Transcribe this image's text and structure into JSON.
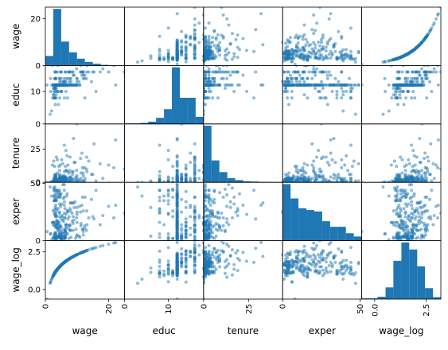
{
  "chart_data": {
    "type": "scatter",
    "subtype": "scatter-matrix",
    "variables": [
      "wage",
      "educ",
      "tenure",
      "exper",
      "wage_log"
    ],
    "point_color": "#1f77b4",
    "point_alpha": 0.5,
    "diagonal": "hist",
    "ranges": {
      "wage": [
        0,
        25
      ],
      "educ": [
        0,
        18
      ],
      "tenure": [
        0,
        44
      ],
      "exper": [
        0,
        51
      ],
      "wage_log": [
        -0.63,
        3.22
      ]
    },
    "ticks": {
      "wage": [
        {
          "v": 0,
          "label": "0"
        },
        {
          "v": 20,
          "label": "20"
        }
      ],
      "educ": [
        {
          "v": 0,
          "label": "0"
        },
        {
          "v": 10,
          "label": "10"
        }
      ],
      "tenure": [
        {
          "v": 0,
          "label": "0"
        },
        {
          "v": 25,
          "label": "25"
        }
      ],
      "exper": [
        {
          "v": 0,
          "label": "0"
        },
        {
          "v": 50,
          "label": "50"
        }
      ],
      "wage_log": [
        {
          "v": 0,
          "label": "0.0"
        },
        {
          "v": 2.5,
          "label": "2.5"
        }
      ]
    },
    "hist": {
      "wage": {
        "edges": [
          0,
          2.5,
          5,
          7.5,
          10,
          12.5,
          15,
          17.5,
          20,
          22.5,
          25
        ],
        "counts": [
          42,
          248,
          105,
          58,
          30,
          16,
          8,
          3,
          2,
          1
        ]
      },
      "educ": {
        "edges": [
          0,
          1.8,
          3.6,
          5.4,
          7.2,
          9,
          10.8,
          12.6,
          14.4,
          16.2,
          18
        ],
        "counts": [
          2,
          2,
          4,
          9,
          24,
          58,
          223,
          103,
          103,
          28
        ]
      },
      "tenure": {
        "edges": [
          0,
          4.4,
          8.8,
          13.2,
          17.6,
          22,
          26.4,
          30.8,
          35.2,
          39.6,
          44
        ],
        "counts": [
          305,
          118,
          55,
          23,
          12,
          6,
          4,
          2,
          1,
          1
        ]
      },
      "exper": {
        "edges": [
          0,
          5.1,
          10.2,
          15.3,
          20.4,
          25.5,
          30.6,
          35.7,
          40.8,
          45.9,
          51
        ],
        "counts": [
          122,
          91,
          70,
          66,
          63,
          42,
          30,
          30,
          16,
          9
        ]
      },
      "wage_log": {
        "edges": [
          -0.63,
          -0.24,
          0.14,
          0.53,
          0.91,
          1.3,
          1.68,
          2.07,
          2.45,
          2.84,
          3.22
        ],
        "counts": [
          2,
          2,
          6,
          30,
          98,
          145,
          127,
          84,
          28,
          5
        ]
      }
    },
    "samples": {
      "wage": [
        3.1,
        3.24,
        3.0,
        6.0,
        5.3,
        8.75,
        11.25,
        5.0,
        3.6,
        18.18,
        6.25,
        8.13,
        8.77,
        5.5,
        22.2,
        17.33,
        7.5,
        10.63,
        3.6,
        4.5,
        6.88,
        8.48,
        6.33,
        0.53,
        6.0,
        9.56,
        7.78,
        12.5,
        12.5,
        3.25,
        13.0,
        4.5,
        9.68,
        5.0,
        4.68,
        4.27,
        6.15,
        3.51,
        3.0,
        6.25,
        7.81,
        10.0,
        4.5,
        4.0,
        6.38,
        13.7,
        1.67,
        2.93,
        3.65,
        2.9,
        1.63,
        8.6,
        5.0,
        6.0,
        2.5,
        3.25,
        3.4,
        10.0,
        21.63,
        4.38,
        11.71,
        12.39,
        6.25,
        3.71,
        7.78,
        19.98,
        6.25,
        10.0,
        5.71,
        2.0,
        5.71,
        13.08,
        4.91,
        2.91,
        3.75,
        11.9,
        4.0,
        3.1,
        8.45,
        7.14,
        4.5,
        4.65,
        2.9,
        6.67,
        3.5,
        3.26,
        3.25,
        8.0,
        9.85,
        7.5,
        5.91,
        11.76,
        3.0,
        4.81,
        6.5,
        4.0,
        3.5,
        13.16,
        2.9,
        3.0,
        4.5,
        3.55,
        4.6,
        6.25,
        8.8,
        2.75,
        11.25,
        4.45,
        3.0,
        7.5,
        5.75,
        7.0,
        9.12,
        3.7,
        2.92,
        4.5,
        15.0,
        4.95,
        6.25,
        3.0,
        2.75,
        9.38,
        7.69,
        5.0,
        4.75,
        4.0,
        3.22,
        11.56,
        5.33,
        2.0,
        4.65,
        12.0,
        6.67,
        5.21,
        2.83,
        3.87,
        4.55,
        5.0,
        3.0,
        6.5,
        7.15,
        4.8,
        8.0,
        2.5,
        4.5,
        1.5,
        3.87,
        6.25,
        15.38,
        3.35,
        5.75,
        3.5,
        2.92,
        6.33,
        7.5,
        2.51,
        4.33,
        3.0,
        5.88,
        4.5,
        11.1,
        3.75,
        2.75,
        4.0,
        4.0,
        5.0,
        6.4,
        4.13,
        9.99,
        3.0,
        12.0,
        3.5,
        24.98,
        6.0,
        3.35,
        2.3,
        10.0,
        3.35,
        5.0,
        4.5,
        4.5,
        6.8,
        3.5,
        9.86,
        3.8,
        3.0,
        2.8,
        4.0,
        5.5,
        5.33,
        6.0,
        3.6,
        16.0,
        4.0,
        6.25,
        8.0,
        3.0,
        5.15,
        4.82,
        2.5,
        6.5,
        3.25,
        7.0,
        10.9,
        3.25,
        2.25,
        4.13,
        6.28,
        5.0,
        6.0,
        2.8,
        10.8,
        4.0,
        3.8,
        3.5,
        12.0,
        5.38,
        4.5,
        6.0,
        3.0,
        3.5,
        3.33,
        5.65,
        6.75,
        5.2,
        8.9,
        3.35,
        2.5,
        5.0,
        3.5,
        9.0,
        3.0,
        14.58,
        8.0,
        4.85,
        2.65,
        5.0,
        3.25,
        2.9,
        4.45,
        7.0,
        6.0,
        4.0,
        4.7
      ],
      "educ": [
        11,
        12,
        11,
        8,
        12,
        16,
        18,
        12,
        12,
        17,
        16,
        13,
        12,
        12,
        12,
        16,
        12,
        13,
        12,
        12,
        12,
        16,
        12,
        12,
        12,
        12,
        16,
        15,
        8,
        14,
        14,
        12,
        12,
        16,
        12,
        12,
        12,
        12,
        12,
        12,
        14,
        12,
        13,
        12,
        12,
        16,
        10,
        8,
        10,
        11,
        14,
        12,
        12,
        12,
        12,
        12,
        9,
        12,
        18,
        12,
        16,
        14,
        12,
        12,
        12,
        16,
        12,
        14,
        13,
        12,
        12,
        16,
        13,
        12,
        12,
        16,
        10,
        6,
        12,
        14,
        12,
        12,
        8,
        14,
        12,
        16,
        12,
        12,
        17,
        12,
        13,
        16,
        14,
        12,
        12,
        12,
        12,
        18,
        11,
        12,
        14,
        12,
        12,
        12,
        15,
        8,
        16,
        14,
        12,
        16,
        13,
        12,
        15,
        12,
        10,
        12,
        16,
        12,
        13,
        8,
        10,
        12,
        16,
        10,
        16,
        12,
        11,
        15,
        12,
        4,
        12,
        16,
        12,
        12,
        12,
        12,
        8,
        12,
        12,
        12,
        16,
        12,
        14,
        11,
        12,
        3,
        12,
        12,
        16,
        12,
        12,
        12,
        12,
        16,
        13,
        9,
        12,
        12,
        12,
        12,
        16,
        12,
        9,
        12,
        12,
        12,
        13,
        12,
        13,
        12,
        15,
        8,
        16,
        12,
        14,
        8,
        14,
        10,
        10,
        12,
        12,
        12,
        11,
        12,
        16,
        8,
        12,
        12,
        12,
        12,
        14,
        12,
        10,
        18,
        12,
        12,
        14,
        10,
        12,
        12,
        10,
        14,
        8,
        12,
        12,
        18,
        6,
        12,
        12,
        12,
        12,
        12,
        12,
        12,
        12,
        14,
        12,
        12,
        12,
        16,
        12,
        12,
        12,
        12,
        12,
        12,
        12,
        12,
        14,
        12,
        12,
        12,
        13,
        12,
        12,
        12,
        16,
        16,
        12,
        12,
        12,
        12,
        10,
        12,
        13,
        12,
        12,
        12,
        12
      ],
      "tenure": [
        0,
        2,
        0,
        28,
        2,
        8,
        7,
        3,
        0,
        3,
        0,
        2,
        3,
        2,
        32,
        14,
        0,
        2,
        0,
        1,
        20,
        2,
        1,
        0,
        8,
        2,
        19,
        3,
        1,
        2,
        10,
        0,
        4,
        0,
        3,
        12,
        2,
        0,
        1,
        0,
        1,
        5,
        0,
        1,
        3,
        16,
        0,
        5,
        0,
        12,
        0,
        6,
        1,
        4,
        0,
        0,
        0,
        3,
        11,
        1,
        1,
        11,
        3,
        0,
        4,
        13,
        2,
        1,
        0,
        0,
        3,
        19,
        1,
        1,
        1,
        7,
        1,
        0,
        8,
        13,
        6,
        1,
        2,
        3,
        2,
        1,
        0,
        4,
        9,
        1,
        3,
        11,
        6,
        4,
        2,
        0,
        1,
        8,
        0,
        0,
        3,
        0,
        3,
        2,
        1,
        3,
        3,
        5,
        1,
        7,
        3,
        1,
        15,
        2,
        0,
        0,
        6,
        2,
        4,
        0,
        1,
        15,
        9,
        1,
        2,
        2,
        0,
        22,
        4,
        0,
        0,
        5,
        9,
        2,
        1,
        1,
        2,
        2,
        0,
        9,
        3,
        0,
        1,
        0,
        3,
        0,
        0,
        2,
        29,
        0,
        4,
        2,
        0,
        12,
        3,
        0,
        1,
        3,
        3,
        0,
        18,
        0,
        0,
        0,
        0,
        2,
        4,
        0,
        44,
        2,
        1,
        0,
        10,
        1,
        6,
        1,
        0,
        4,
        3,
        9,
        0,
        0,
        3,
        1,
        17,
        0,
        1,
        0,
        14,
        5,
        5,
        0,
        1,
        2,
        0,
        0,
        1,
        17,
        1,
        0,
        24,
        0,
        8,
        0,
        5,
        13,
        1,
        0,
        3,
        1,
        3,
        1,
        0,
        7,
        19,
        0,
        0,
        1,
        4,
        0,
        0,
        5,
        3,
        2,
        0,
        33,
        0,
        1,
        3,
        0,
        0,
        4,
        6,
        3,
        2,
        16,
        1,
        3,
        0,
        4,
        0,
        2,
        1,
        13,
        6,
        1,
        0,
        1,
        3
      ],
      "exper": [
        2,
        22,
        2,
        44,
        7,
        9,
        15,
        5,
        26,
        22,
        8,
        3,
        15,
        18,
        31,
        14,
        10,
        4,
        14,
        38,
        41,
        17,
        3,
        8,
        20,
        2,
        28,
        11,
        38,
        3,
        9,
        24,
        10,
        1,
        38,
        9,
        3,
        35,
        3,
        2,
        9,
        23,
        11,
        14,
        7,
        20,
        6,
        24,
        1,
        45,
        6,
        33,
        1,
        31,
        3,
        6,
        35,
        5,
        20,
        6,
        10,
        13,
        4,
        44,
        14,
        30,
        28,
        16,
        1,
        1,
        3,
        26,
        4,
        2,
        16,
        10,
        44,
        29,
        24,
        19,
        44,
        4,
        27,
        6,
        11,
        1,
        31,
        26,
        20,
        13,
        6,
        38,
        43,
        4,
        14,
        3,
        2,
        14,
        38,
        16,
        16,
        41,
        12,
        9,
        21,
        44,
        13,
        3,
        47,
        21,
        4,
        26,
        29,
        11,
        3,
        32,
        21,
        2,
        9,
        35,
        35,
        34,
        13,
        41,
        3,
        17,
        21,
        31,
        7,
        39,
        7,
        26,
        11,
        1,
        16,
        15,
        3,
        5,
        40,
        12,
        26,
        2,
        9,
        26,
        6,
        47,
        11,
        2,
        19,
        4,
        17,
        21,
        23,
        8,
        2,
        14,
        14,
        3,
        10,
        40,
        25,
        17,
        39,
        3,
        42,
        9,
        14,
        28,
        25,
        4,
        5,
        28,
        24,
        49,
        13,
        16,
        29,
        24,
        2,
        42,
        25,
        14,
        44,
        4,
        38,
        6,
        13,
        12,
        49,
        22,
        34,
        18,
        44,
        9,
        20,
        33,
        5,
        32,
        30,
        2,
        23,
        3,
        25,
        3,
        12,
        16,
        4,
        4,
        19,
        4,
        35,
        30,
        4,
        4,
        22,
        8,
        2,
        4,
        24,
        7,
        3,
        7,
        37,
        39,
        21,
        33,
        3,
        16,
        12,
        37,
        18,
        36,
        36,
        33,
        13,
        46,
        4,
        14,
        5,
        21,
        6,
        38,
        39,
        40,
        2,
        14,
        39,
        6,
        40
      ],
      "wage_log": [
        1.13,
        1.18,
        1.1,
        1.79,
        1.67,
        2.17,
        2.42,
        1.61,
        1.28,
        2.9,
        1.83,
        2.1,
        2.17,
        1.7,
        3.1,
        2.85,
        2.01,
        2.36,
        1.28,
        1.5,
        1.93,
        2.14,
        1.85,
        -0.63,
        1.79,
        2.26,
        2.05,
        2.53,
        2.53,
        1.18,
        2.56,
        1.5,
        2.27,
        1.61,
        1.54,
        1.45,
        1.82,
        1.26,
        1.1,
        1.83,
        2.06,
        2.3,
        1.5,
        1.39,
        1.85,
        2.62,
        0.51,
        1.08,
        1.29,
        1.06,
        0.49,
        2.15,
        1.61,
        1.79,
        0.92,
        1.18,
        1.22,
        2.3,
        3.07,
        1.48,
        2.46,
        2.52,
        1.83,
        1.31,
        2.05,
        2.99,
        1.83,
        2.3,
        1.74,
        0.69,
        1.74,
        2.57,
        1.59,
        1.07,
        1.32,
        2.48,
        1.39,
        1.13,
        2.13,
        1.97,
        1.5,
        1.54,
        1.06,
        1.9,
        1.25,
        1.18,
        1.18,
        2.08,
        2.29,
        2.01,
        1.78,
        2.46,
        1.1,
        1.57,
        1.87,
        1.39,
        1.25,
        2.58,
        1.06,
        1.1,
        1.5,
        1.27,
        1.53,
        1.83,
        2.17,
        1.01,
        2.42,
        1.49,
        1.1,
        2.01,
        1.75,
        1.95,
        2.21,
        1.31,
        1.07,
        1.5,
        2.71,
        1.6,
        1.83,
        1.1,
        1.01,
        2.24,
        2.04,
        1.61,
        1.56,
        1.39,
        1.17,
        2.45,
        1.67,
        0.69,
        1.54,
        2.48,
        1.9,
        1.65,
        1.04,
        1.35,
        1.52,
        1.61,
        1.1,
        1.87,
        1.97,
        1.57,
        2.08,
        0.92,
        1.5,
        0.41,
        1.35,
        1.83,
        2.73,
        1.21,
        1.75,
        1.25,
        1.07,
        1.85,
        2.01,
        0.92,
        1.47,
        1.1,
        1.77,
        1.5,
        2.41,
        1.32,
        1.01,
        1.39,
        1.39,
        1.61,
        1.86,
        1.42,
        2.3,
        1.1,
        2.48,
        1.25,
        3.22,
        1.79,
        1.21,
        0.83,
        2.3,
        1.21,
        1.61,
        1.5,
        1.5,
        1.92,
        1.25,
        2.29,
        1.34,
        1.1,
        1.03,
        1.39,
        1.7,
        1.67,
        1.79,
        1.28,
        2.77,
        1.39,
        1.83,
        2.08,
        1.1,
        1.64,
        1.57,
        0.92,
        1.87,
        1.18,
        1.95,
        2.39,
        1.18,
        0.81,
        1.42,
        1.84,
        1.61,
        1.79,
        1.03,
        2.38,
        1.39,
        1.34,
        1.25,
        2.48,
        1.68,
        1.5,
        1.79,
        1.1,
        1.25,
        1.2,
        1.73,
        1.91,
        1.65,
        2.19,
        1.21,
        0.92,
        1.61,
        1.25,
        2.2,
        1.1,
        2.68,
        2.08,
        1.58,
        0.97,
        1.61,
        1.18,
        1.06,
        1.49,
        1.95,
        1.79,
        1.39,
        1.55
      ]
    }
  }
}
